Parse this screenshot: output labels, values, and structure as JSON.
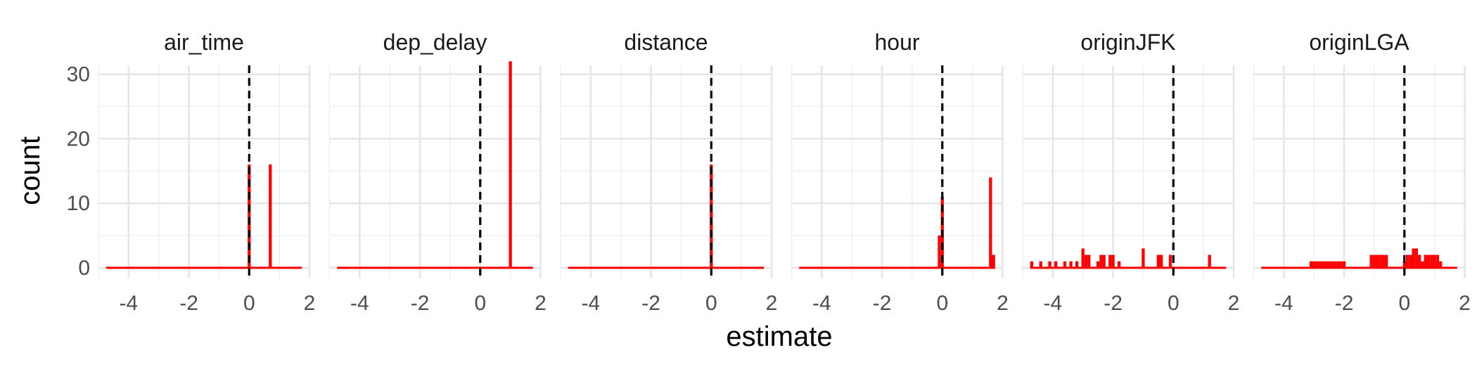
{
  "chart_data": {
    "type": "bar",
    "subtype": "faceted-histogram",
    "xlabel": "estimate",
    "ylabel": "count",
    "xlim": [
      -5,
      2
    ],
    "ylim": [
      0,
      33
    ],
    "x_ticks": [
      -4,
      -2,
      0,
      2
    ],
    "x_tick_labels": [
      "-4",
      "-2",
      "0",
      "2"
    ],
    "y_ticks": [
      0,
      10,
      20,
      30
    ],
    "y_tick_labels": [
      "0",
      "10",
      "20",
      "30"
    ],
    "grid": true,
    "reference_line": {
      "x": 0,
      "style": "dashed",
      "color": "#000000"
    },
    "bar_color": "#ff0000",
    "bin_range": [
      -4.7,
      1.7
    ],
    "bin_width": 0.1,
    "facets": [
      {
        "name": "air_time",
        "bars": [
          {
            "x": 0.0,
            "count": 16
          },
          {
            "x": 0.7,
            "count": 16
          }
        ]
      },
      {
        "name": "dep_delay",
        "bars": [
          {
            "x": 1.0,
            "count": 32
          }
        ]
      },
      {
        "name": "distance",
        "bars": [
          {
            "x": 0.0,
            "count": 16
          }
        ]
      },
      {
        "name": "hour",
        "bars": [
          {
            "x": -0.1,
            "count": 5
          },
          {
            "x": 0.0,
            "count": 11
          },
          {
            "x": 1.6,
            "count": 14
          },
          {
            "x": 1.7,
            "count": 2
          }
        ]
      },
      {
        "name": "originJFK",
        "bars": [
          {
            "x": -4.7,
            "count": 1
          },
          {
            "x": -4.4,
            "count": 1
          },
          {
            "x": -4.1,
            "count": 1
          },
          {
            "x": -3.9,
            "count": 1
          },
          {
            "x": -3.6,
            "count": 1
          },
          {
            "x": -3.4,
            "count": 1
          },
          {
            "x": -3.2,
            "count": 1
          },
          {
            "x": -3.0,
            "count": 3
          },
          {
            "x": -2.9,
            "count": 2
          },
          {
            "x": -2.8,
            "count": 2
          },
          {
            "x": -2.5,
            "count": 1
          },
          {
            "x": -2.4,
            "count": 2
          },
          {
            "x": -2.3,
            "count": 2
          },
          {
            "x": -2.1,
            "count": 2
          },
          {
            "x": -2.0,
            "count": 2
          },
          {
            "x": -1.8,
            "count": 1
          },
          {
            "x": -1.0,
            "count": 3
          },
          {
            "x": -0.5,
            "count": 2
          },
          {
            "x": -0.4,
            "count": 2
          },
          {
            "x": -0.1,
            "count": 2
          },
          {
            "x": 1.2,
            "count": 2
          }
        ]
      },
      {
        "name": "originLGA",
        "bars": [
          {
            "x": -3.1,
            "count": 1
          },
          {
            "x": -3.0,
            "count": 1
          },
          {
            "x": -2.9,
            "count": 1
          },
          {
            "x": -2.8,
            "count": 1
          },
          {
            "x": -2.7,
            "count": 1
          },
          {
            "x": -2.6,
            "count": 1
          },
          {
            "x": -2.5,
            "count": 1
          },
          {
            "x": -2.4,
            "count": 1
          },
          {
            "x": -2.3,
            "count": 1
          },
          {
            "x": -2.2,
            "count": 1
          },
          {
            "x": -2.1,
            "count": 1
          },
          {
            "x": -2.0,
            "count": 1
          },
          {
            "x": -1.1,
            "count": 2
          },
          {
            "x": -1.0,
            "count": 2
          },
          {
            "x": -0.9,
            "count": 2
          },
          {
            "x": -0.8,
            "count": 2
          },
          {
            "x": -0.7,
            "count": 2
          },
          {
            "x": -0.6,
            "count": 2
          },
          {
            "x": 0.0,
            "count": 1
          },
          {
            "x": 0.1,
            "count": 2
          },
          {
            "x": 0.2,
            "count": 2
          },
          {
            "x": 0.3,
            "count": 3
          },
          {
            "x": 0.4,
            "count": 3
          },
          {
            "x": 0.5,
            "count": 2
          },
          {
            "x": 0.6,
            "count": 1
          },
          {
            "x": 0.7,
            "count": 2
          },
          {
            "x": 0.8,
            "count": 2
          },
          {
            "x": 0.9,
            "count": 2
          },
          {
            "x": 1.0,
            "count": 2
          },
          {
            "x": 1.1,
            "count": 2
          },
          {
            "x": 1.2,
            "count": 1
          }
        ]
      }
    ]
  }
}
